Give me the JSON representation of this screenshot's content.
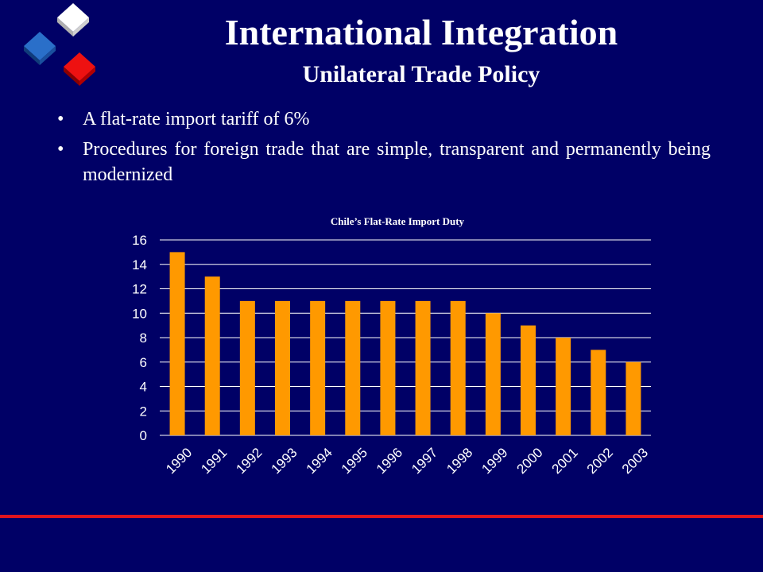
{
  "slide": {
    "title": "International Integration",
    "subtitle": "Unilateral Trade Policy",
    "bullets": [
      "A flat-rate import tariff of 6%",
      "Procedures for foreign trade that are simple, transparent and permanently being modernized"
    ],
    "bullet_glyph": "•"
  },
  "colors": {
    "background": "#000066",
    "bar": "#ff9900",
    "accent_line": "#e0141e",
    "text": "#ffffff"
  },
  "chart_data": {
    "type": "bar",
    "title": "Chile’s Flat-Rate Import Duty",
    "categories": [
      "1990",
      "1991",
      "1992",
      "1993",
      "1994",
      "1995",
      "1996",
      "1997",
      "1998",
      "1999",
      "2000",
      "2001",
      "2002",
      "2003"
    ],
    "values": [
      15,
      13,
      11,
      11,
      11,
      11,
      11,
      11,
      11,
      10,
      9,
      8,
      7,
      6
    ],
    "xlabel": "",
    "ylabel": "",
    "ylim": [
      0,
      16
    ],
    "yticks": [
      0,
      2,
      4,
      6,
      8,
      10,
      12,
      14,
      16
    ],
    "grid": true,
    "legend": "none"
  }
}
